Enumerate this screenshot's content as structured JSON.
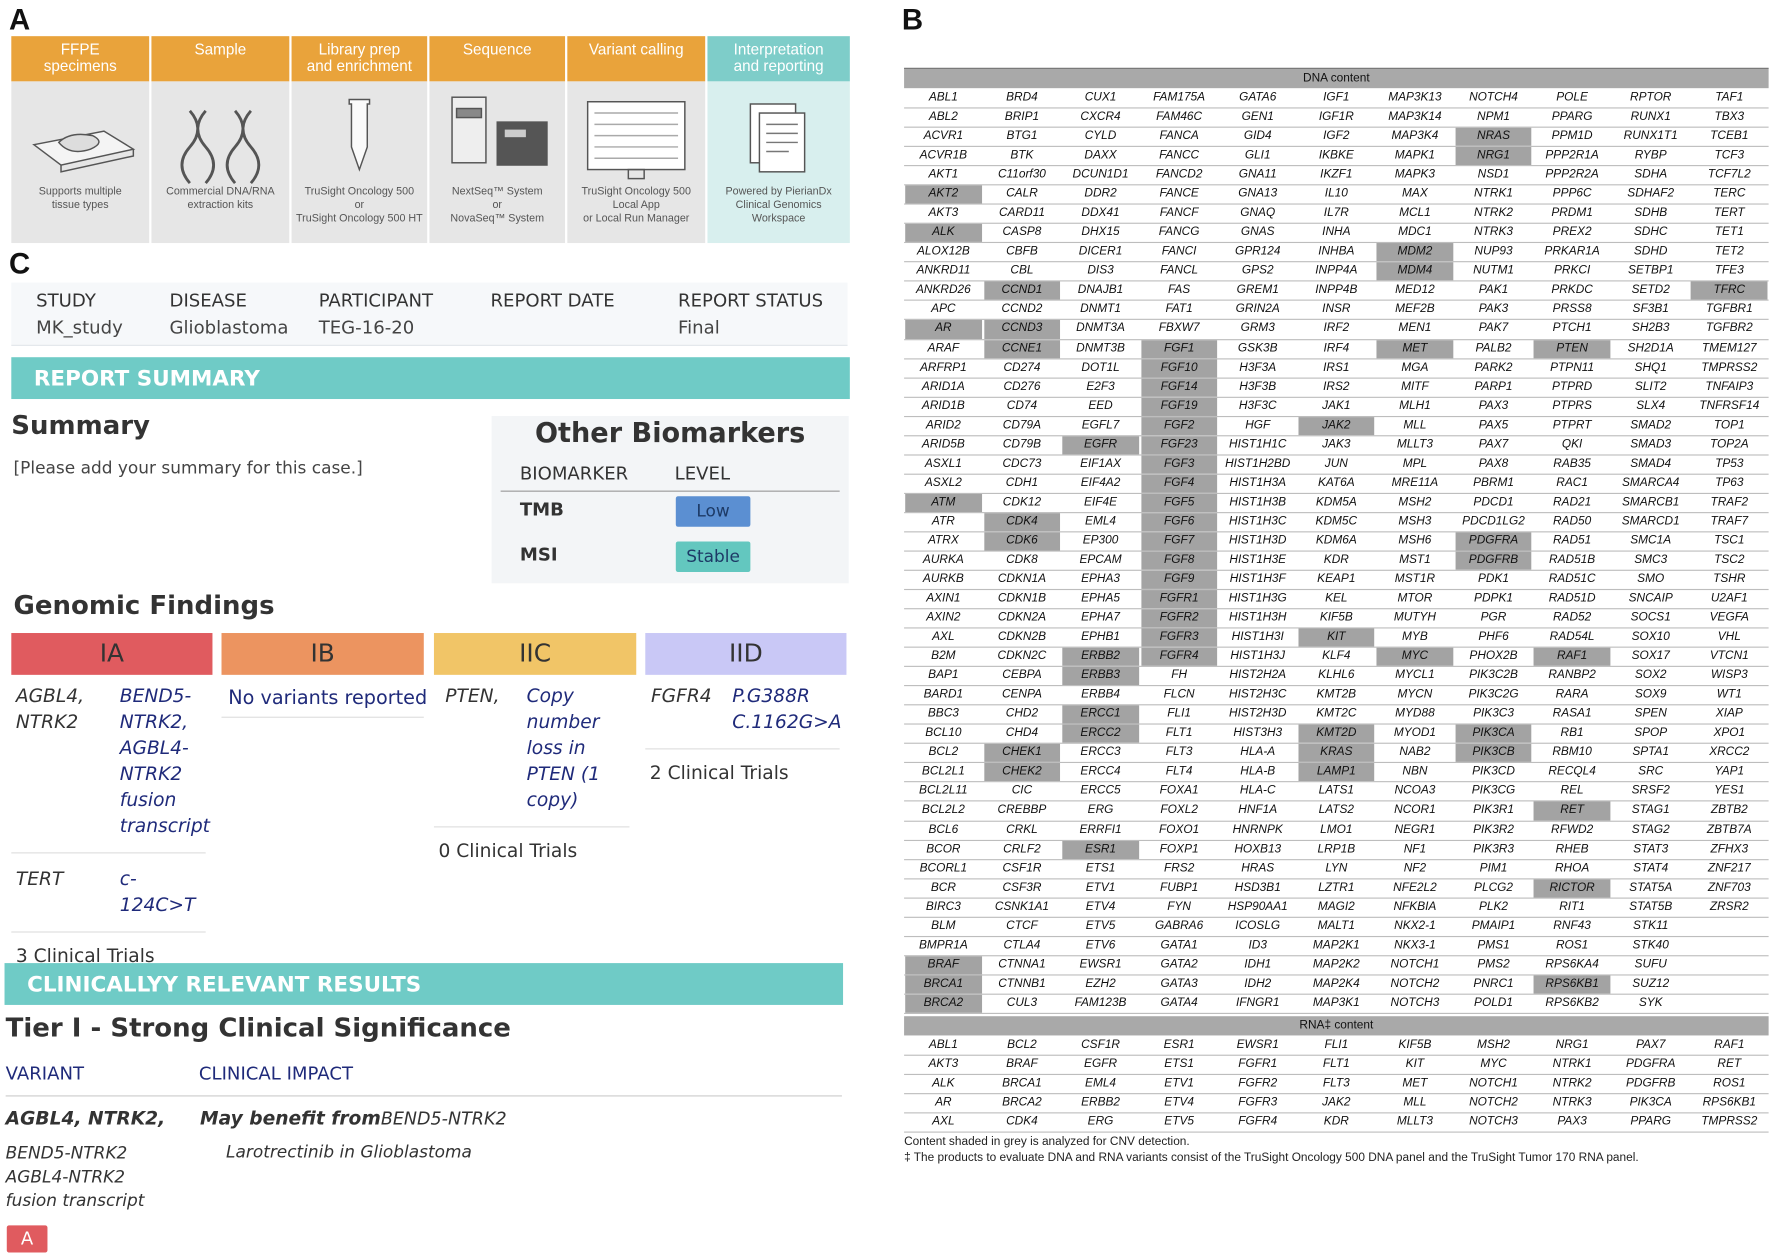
{
  "panels": {
    "a": "A",
    "b": "B",
    "c": "C"
  },
  "workflow": {
    "steps": [
      {
        "header": "FFPE\nspecimens",
        "caption": "Supports multiple\ntissue types"
      },
      {
        "header": "Sample",
        "caption": "Commercial DNA/RNA\nextraction kits"
      },
      {
        "header": "Library prep\nand enrichment",
        "caption": "TruSight Oncology 500\nor\nTruSight Oncology 500 HT"
      },
      {
        "header": "Sequence",
        "caption": "NextSeq™ System\nor\nNovaSeq™ System"
      },
      {
        "header": "Variant calling",
        "caption": "TruSight Oncology 500\nLocal App\nor Local Run Manager"
      },
      {
        "header": "Interpretation\nand reporting",
        "caption": "Powered by PierianDx\nClinical Genomics\nWorkspace"
      }
    ]
  },
  "gene_table": {
    "dna_header": "DNA content",
    "dna_columns": [
      [
        "ABL1",
        "ABL2",
        "ACVR1",
        "ACVR1B",
        "AKT1",
        "AKT2",
        "AKT3",
        "ALK",
        "ALOX12B",
        "ANKRD11",
        "ANKRD26",
        "APC",
        "AR",
        "ARAF",
        "ARFRP1",
        "ARID1A",
        "ARID1B",
        "ARID2",
        "ARID5B",
        "ASXL1",
        "ASXL2",
        "ATM",
        "ATR",
        "ATRX",
        "AURKA",
        "AURKB",
        "AXIN1",
        "AXIN2",
        "AXL",
        "B2M",
        "BAP1",
        "BARD1",
        "BBC3",
        "BCL10",
        "BCL2",
        "BCL2L1",
        "BCL2L11",
        "BCL2L2",
        "BCL6",
        "BCOR",
        "BCORL1",
        "BCR",
        "BIRC3",
        "BLM",
        "BMPR1A",
        "BRAF",
        "BRCA1",
        "BRCA2"
      ],
      [
        "BRD4",
        "BRIP1",
        "BTG1",
        "BTK",
        "C11orf30",
        "CALR",
        "CARD11",
        "CASP8",
        "CBFB",
        "CBL",
        "CCND1",
        "CCND2",
        "CCND3",
        "CCNE1",
        "CD274",
        "CD276",
        "CD74",
        "CD79A",
        "CD79B",
        "CDC73",
        "CDH1",
        "CDK12",
        "CDK4",
        "CDK6",
        "CDK8",
        "CDKN1A",
        "CDKN1B",
        "CDKN2A",
        "CDKN2B",
        "CDKN2C",
        "CEBPA",
        "CENPA",
        "CHD2",
        "CHD4",
        "CHEK1",
        "CHEK2",
        "CIC",
        "CREBBP",
        "CRKL",
        "CRLF2",
        "CSF1R",
        "CSF3R",
        "CSNK1A1",
        "CTCF",
        "CTLA4",
        "CTNNA1",
        "CTNNB1",
        "CUL3"
      ],
      [
        "CUX1",
        "CXCR4",
        "CYLD",
        "DAXX",
        "DCUN1D1",
        "DDR2",
        "DDX41",
        "DHX15",
        "DICER1",
        "DIS3",
        "DNAJB1",
        "DNMT1",
        "DNMT3A",
        "DNMT3B",
        "DOT1L",
        "E2F3",
        "EED",
        "EGFL7",
        "EGFR",
        "EIF1AX",
        "EIF4A2",
        "EIF4E",
        "EML4",
        "EP300",
        "EPCAM",
        "EPHA3",
        "EPHA5",
        "EPHA7",
        "EPHB1",
        "ERBB2",
        "ERBB3",
        "ERBB4",
        "ERCC1",
        "ERCC2",
        "ERCC3",
        "ERCC4",
        "ERCC5",
        "ERG",
        "ERRFI1",
        "ESR1",
        "ETS1",
        "ETV1",
        "ETV4",
        "ETV5",
        "ETV6",
        "EWSR1",
        "EZH2",
        "FAM123B"
      ],
      [
        "FAM175A",
        "FAM46C",
        "FANCA",
        "FANCC",
        "FANCD2",
        "FANCE",
        "FANCF",
        "FANCG",
        "FANCI",
        "FANCL",
        "FAS",
        "FAT1",
        "FBXW7",
        "FGF1",
        "FGF10",
        "FGF14",
        "FGF19",
        "FGF2",
        "FGF23",
        "FGF3",
        "FGF4",
        "FGF5",
        "FGF6",
        "FGF7",
        "FGF8",
        "FGF9",
        "FGFR1",
        "FGFR2",
        "FGFR3",
        "FGFR4",
        "FH",
        "FLCN",
        "FLI1",
        "FLT1",
        "FLT3",
        "FLT4",
        "FOXA1",
        "FOXL2",
        "FOXO1",
        "FOXP1",
        "FRS2",
        "FUBP1",
        "FYN",
        "GABRA6",
        "GATA1",
        "GATA2",
        "GATA3",
        "GATA4"
      ],
      [
        "GATA6",
        "GEN1",
        "GID4",
        "GLI1",
        "GNA11",
        "GNA13",
        "GNAQ",
        "GNAS",
        "GPR124",
        "GPS2",
        "GREM1",
        "GRIN2A",
        "GRM3",
        "GSK3B",
        "H3F3A",
        "H3F3B",
        "H3F3C",
        "HGF",
        "HIST1H1C",
        "HIST1H2BD",
        "HIST1H3A",
        "HIST1H3B",
        "HIST1H3C",
        "HIST1H3D",
        "HIST1H3E",
        "HIST1H3F",
        "HIST1H3G",
        "HIST1H3H",
        "HIST1H3I",
        "HIST1H3J",
        "HIST2H2A",
        "HIST2H3C",
        "HIST2H3D",
        "HIST3H3",
        "HLA-A",
        "HLA-B",
        "HLA-C",
        "HNF1A",
        "HNRNPK",
        "HOXB13",
        "HRAS",
        "HSD3B1",
        "HSP90AA1",
        "ICOSLG",
        "ID3",
        "IDH1",
        "IDH2",
        "IFNGR1"
      ],
      [
        "IGF1",
        "IGF1R",
        "IGF2",
        "IKBKE",
        "IKZF1",
        "IL10",
        "IL7R",
        "INHA",
        "INHBA",
        "INPP4A",
        "INPP4B",
        "INSR",
        "IRF2",
        "IRF4",
        "IRS1",
        "IRS2",
        "JAK1",
        "JAK2",
        "JAK3",
        "JUN",
        "KAT6A",
        "KDM5A",
        "KDM5C",
        "KDM6A",
        "KDR",
        "KEAP1",
        "KEL",
        "KIF5B",
        "KIT",
        "KLF4",
        "KLHL6",
        "KMT2B",
        "KMT2C",
        "KMT2D",
        "KRAS",
        "LAMP1",
        "LATS1",
        "LATS2",
        "LMO1",
        "LRP1B",
        "LYN",
        "LZTR1",
        "MAGI2",
        "MALT1",
        "MAP2K1",
        "MAP2K2",
        "MAP2K4",
        "MAP3K1"
      ],
      [
        "MAP3K13",
        "MAP3K14",
        "MAP3K4",
        "MAPK1",
        "MAPK3",
        "MAX",
        "MCL1",
        "MDC1",
        "MDM2",
        "MDM4",
        "MED12",
        "MEF2B",
        "MEN1",
        "MET",
        "MGA",
        "MITF",
        "MLH1",
        "MLL",
        "MLLT3",
        "MPL",
        "MRE11A",
        "MSH2",
        "MSH3",
        "MSH6",
        "MST1",
        "MST1R",
        "MTOR",
        "MUTYH",
        "MYB",
        "MYC",
        "MYCL1",
        "MYCN",
        "MYD88",
        "MYOD1",
        "NAB2",
        "NBN",
        "NCOA3",
        "NCOR1",
        "NEGR1",
        "NF1",
        "NF2",
        "NFE2L2",
        "NFKBIA",
        "NKX2-1",
        "NKX3-1",
        "NOTCH1",
        "NOTCH2",
        "NOTCH3"
      ],
      [
        "NOTCH4",
        "NPM1",
        "NRAS",
        "NRG1",
        "NSD1",
        "NTRK1",
        "NTRK2",
        "NTRK3",
        "NUP93",
        "NUTM1",
        "PAK1",
        "PAK3",
        "PAK7",
        "PALB2",
        "PARK2",
        "PARP1",
        "PAX3",
        "PAX5",
        "PAX7",
        "PAX8",
        "PBRM1",
        "PDCD1",
        "PDCD1LG2",
        "PDGFRA",
        "PDGFRB",
        "PDK1",
        "PDPK1",
        "PGR",
        "PHF6",
        "PHOX2B",
        "PIK3C2B",
        "PIK3C2G",
        "PIK3C3",
        "PIK3CA",
        "PIK3CB",
        "PIK3CD",
        "PIK3CG",
        "PIK3R1",
        "PIK3R2",
        "PIK3R3",
        "PIM1",
        "PLCG2",
        "PLK2",
        "PMAIP1",
        "PMS1",
        "PMS2",
        "PNRC1",
        "POLD1"
      ],
      [
        "POLE",
        "PPARG",
        "PPM1D",
        "PPP2R1A",
        "PPP2R2A",
        "PPP6C",
        "PRDM1",
        "PREX2",
        "PRKAR1A",
        "PRKCI",
        "PRKDC",
        "PRSS8",
        "PTCH1",
        "PTEN",
        "PTPN11",
        "PTPRD",
        "PTPRS",
        "PTPRT",
        "QKI",
        "RAB35",
        "RAC1",
        "RAD21",
        "RAD50",
        "RAD51",
        "RAD51B",
        "RAD51C",
        "RAD51D",
        "RAD52",
        "RAD54L",
        "RAF1",
        "RANBP2",
        "RARA",
        "RASA1",
        "RB1",
        "RBM10",
        "RECQL4",
        "REL",
        "RET",
        "RFWD2",
        "RHEB",
        "RHOA",
        "RICTOR",
        "RIT1",
        "RNF43",
        "ROS1",
        "RPS6KA4",
        "RPS6KB1",
        "RPS6KB2"
      ],
      [
        "RPTOR",
        "RUNX1",
        "RUNX1T1",
        "RYBP",
        "SDHA",
        "SDHAF2",
        "SDHB",
        "SDHC",
        "SDHD",
        "SETBP1",
        "SETD2",
        "SF3B1",
        "SH2B3",
        "SH2D1A",
        "SHQ1",
        "SLIT2",
        "SLX4",
        "SMAD2",
        "SMAD3",
        "SMAD4",
        "SMARCA4",
        "SMARCB1",
        "SMARCD1",
        "SMC1A",
        "SMC3",
        "SMO",
        "SNCAIP",
        "SOCS1",
        "SOX10",
        "SOX17",
        "SOX2",
        "SOX9",
        "SPEN",
        "SPOP",
        "SPTA1",
        "SRC",
        "SRSF2",
        "STAG1",
        "STAG2",
        "STAT3",
        "STAT4",
        "STAT5A",
        "STAT5B",
        "STK11",
        "STK40",
        "SUFU",
        "SUZ12",
        "SYK"
      ],
      [
        "TAF1",
        "TBX3",
        "TCEB1",
        "TCF3",
        "TCF7L2",
        "TERC",
        "TERT",
        "TET1",
        "TET2",
        "TFE3",
        "TFRC",
        "TGFBR1",
        "TGFBR2",
        "TMEM127",
        "TMPRSS2",
        "TNFAIP3",
        "TNFRSF14",
        "TOP1",
        "TOP2A",
        "TP53",
        "TP63",
        "TRAF2",
        "TRAF7",
        "TSC1",
        "TSC2",
        "TSHR",
        "U2AF1",
        "VEGFA",
        "VHL",
        "VTCN1",
        "WISP3",
        "WT1",
        "XIAP",
        "XPO1",
        "XRCC2",
        "YAP1",
        "YES1",
        "ZBTB2",
        "ZBTB7A",
        "ZFHX3",
        "ZNF217",
        "ZNF703",
        "ZRSR2",
        null,
        null,
        null,
        null,
        null
      ]
    ],
    "shaded": [
      "AKT2",
      "ALK",
      "AR",
      "ATM",
      "BRAF",
      "BRCA1",
      "BRCA2",
      "CCND1",
      "CCND3",
      "CCNE1",
      "CDK4",
      "CDK6",
      "CHEK1",
      "CHEK2",
      "EGFR",
      "ERBB2",
      "ERBB3",
      "ERCC1",
      "ERCC2",
      "ESR1",
      "FGF1",
      "FGF10",
      "FGF14",
      "FGF19",
      "FGF2",
      "FGF23",
      "FGF3",
      "FGF4",
      "FGF5",
      "FGF6",
      "FGF7",
      "FGF8",
      "FGF9",
      "FGFR1",
      "FGFR2",
      "FGFR3",
      "FGFR4",
      "KIT",
      "JAK2",
      "KMT2D",
      "KRAS",
      "LAMP1",
      "MDM2",
      "MDM4",
      "MET",
      "MYC",
      "NRAS",
      "NRG1",
      "PDGFRA",
      "PDGFRB",
      "PIK3CA",
      "PIK3CB",
      "PTEN",
      "RAF1",
      "RET",
      "RICTOR",
      "RPS6KB1",
      "TFRC"
    ],
    "rna_header": "RNA‡ content",
    "rna_rows": [
      [
        "ABL1",
        "BCL2",
        "CSF1R",
        "ESR1",
        "EWSR1",
        "FLI1",
        "KIF5B",
        "MSH2",
        "NRG1",
        "PAX7",
        "RAF1"
      ],
      [
        "AKT3",
        "BRAF",
        "EGFR",
        "ETS1",
        "FGFR1",
        "FLT1",
        "KIT",
        "MYC",
        "NTRK1",
        "PDGFRA",
        "RET"
      ],
      [
        "ALK",
        "BRCA1",
        "EML4",
        "ETV1",
        "FGFR2",
        "FLT3",
        "MET",
        "NOTCH1",
        "NTRK2",
        "PDGFRB",
        "ROS1"
      ],
      [
        "AR",
        "BRCA2",
        "ERBB2",
        "ETV4",
        "FGFR3",
        "JAK2",
        "MLL",
        "NOTCH2",
        "NTRK3",
        "PIK3CA",
        "RPS6KB1"
      ],
      [
        "AXL",
        "CDK4",
        "ERG",
        "ETV5",
        "FGFR4",
        "KDR",
        "MLLT3",
        "NOTCH3",
        "PAX3",
        "PPARG",
        "TMPRSS2"
      ]
    ],
    "footnotes": [
      "Content shaded in grey is analyzed for CNV detection.",
      "‡ The products to evaluate DNA and RNA variants consist of the TruSight Oncology 500 DNA panel and the TruSight Tumor 170 RNA panel."
    ]
  },
  "report": {
    "header": [
      {
        "label": "STUDY",
        "value": "MK_study"
      },
      {
        "label": "DISEASE",
        "value": "Glioblastoma"
      },
      {
        "label": "PARTICIPANT",
        "value": "TEG-16-20"
      },
      {
        "label": "REPORT DATE"
      },
      {
        "label": "REPORT STATUS",
        "value": "Final"
      }
    ],
    "summary_bar": "REPORT SUMMARY",
    "summary_title": "Summary",
    "summary_text": "[Please add your summary for this case.]",
    "biomarkers": {
      "title": "Other Biomarkers",
      "columns": [
        "BIOMARKER",
        "LEVEL"
      ],
      "rows": [
        {
          "name": "TMB",
          "level": "Low"
        },
        {
          "name": "MSI",
          "level": "Stable"
        }
      ]
    },
    "genomic_title": "Genomic Findings",
    "tiers": [
      {
        "label": "IA",
        "findings": [
          {
            "gene": "AGBL4, NTRK2",
            "variant": "BEND5-NTRK2, AGBL4-NTRK2 fusion transcript"
          },
          {
            "gene": "TERT",
            "variant": "c-124C>T"
          }
        ],
        "trials": "3 Clinical Trials"
      },
      {
        "label": "IB",
        "note": "No variants reported"
      },
      {
        "label": "IIC",
        "findings": [
          {
            "gene": "PTEN,",
            "variant": "Copy number loss in PTEN (1 copy)"
          }
        ],
        "trials": "0 Clinical Trials"
      },
      {
        "label": "IID",
        "findings": [
          {
            "gene": "FGFR4",
            "variant": "P.G388R\nC.1162G>A"
          }
        ],
        "trials": "2 Clinical Trials"
      }
    ],
    "results_bar": "CLINICALLYY RELEVANT RESULTS",
    "tier_title": "Tier I - Strong Clinical Significance",
    "columns": [
      "VARIANT",
      "CLINICAL IMPACT"
    ],
    "results": [
      {
        "variant": "AGBL4, NTRK2,",
        "detail": "BEND5-NTRK2\nAGBL4-NTRK2\nfusion transcript",
        "impact_lead": "May benefit from",
        "impact_target": "BEND5-NTRK2",
        "therapy": "Larotrectinib in Glioblastoma",
        "level": "A"
      }
    ]
  }
}
